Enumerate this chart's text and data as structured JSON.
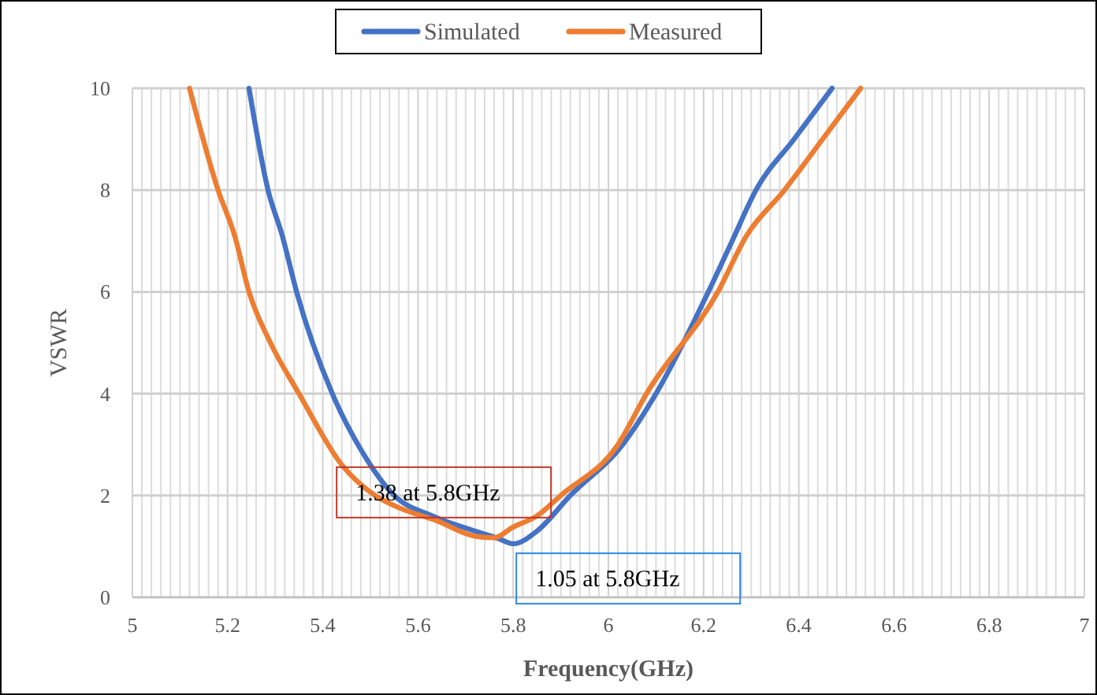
{
  "chart_data": {
    "type": "line",
    "xlabel": "Frequency(GHz)",
    "ylabel": "VSWR",
    "xlim": [
      5,
      7
    ],
    "ylim": [
      0,
      10
    ],
    "xticks": [
      5,
      5.2,
      5.4,
      5.6,
      5.8,
      {
        "value": 6,
        "label": "6"
      },
      6.2,
      6.4,
      6.6,
      6.8,
      7
    ],
    "yticks": [
      0,
      2,
      4,
      6,
      8,
      10
    ],
    "grid": true,
    "legend": "top",
    "marker": "none",
    "line_style": "solid",
    "series": [
      {
        "name": "Simulated",
        "color": "#4472c4",
        "x": [
          5.245,
          5.285,
          5.315,
          5.345,
          5.42,
          5.48,
          5.55,
          5.63,
          5.72,
          5.77,
          5.8,
          5.85,
          5.92,
          6.03,
          6.1,
          6.21,
          6.26,
          6.31,
          6.39,
          6.47
        ],
        "values": [
          10,
          8,
          7.1,
          6,
          4,
          2.9,
          2,
          1.6,
          1.3,
          1.15,
          1.05,
          1.3,
          2,
          3,
          4,
          6,
          7,
          8,
          9,
          10
        ]
      },
      {
        "name": "Measured",
        "color": "#ed7d31",
        "x": [
          5.12,
          5.18,
          5.215,
          5.245,
          5.29,
          5.35,
          5.44,
          5.51,
          5.55,
          5.64,
          5.72,
          5.76,
          5.8,
          5.85,
          5.9,
          6.02,
          6.08,
          6.23,
          6.29,
          6.37,
          6.45,
          6.53
        ],
        "values": [
          10,
          8,
          7.1,
          6,
          5,
          4,
          2.6,
          2,
          1.8,
          1.5,
          1.2,
          1.17,
          1.38,
          1.6,
          2,
          3,
          4,
          6,
          7.1,
          8,
          9,
          10
        ]
      }
    ],
    "annotations": [
      {
        "text": "1.38 at 5.8GHz",
        "x": 5.8,
        "y": 1.38
      },
      {
        "text": "1.05 at 5.8GHz",
        "x": 5.8,
        "y": 1.05
      }
    ]
  }
}
